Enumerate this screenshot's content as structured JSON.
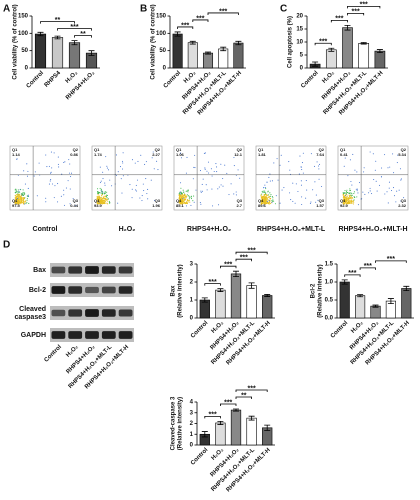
{
  "chart_data": [
    {
      "type": "bar",
      "panel": "A",
      "ylabel": [
        "Cell viability (% of control)"
      ],
      "categories": [
        "Control",
        "RHPS4",
        "H₂O₂",
        "RHPS4+H₂O₂"
      ],
      "values": [
        98,
        88,
        73,
        43
      ],
      "errors": [
        5,
        4,
        6,
        7
      ],
      "colors": [
        "#333333",
        "#c8c8c8",
        "#777777",
        "#555555"
      ],
      "ylim": [
        0,
        150
      ],
      "yticks": [
        0,
        50,
        100,
        150
      ],
      "significance": [
        {
          "label": "**",
          "between": [
            "H₂O₂",
            "RHPS4+H₂O₂"
          ]
        },
        {
          "label": "***",
          "between": [
            "RHPS4",
            "RHPS4+H₂O₂"
          ]
        },
        {
          "label": "**",
          "between": [
            "Control",
            "H₂O₂"
          ]
        }
      ]
    },
    {
      "type": "bar",
      "panel": "B",
      "ylabel": [
        "Cell viability (% of control)"
      ],
      "categories": [
        "Control",
        "H₂O₂",
        "RHPS4+H₂O₂",
        "RHPS4+H₂O₂+MLT-L",
        "RHPS4+H₂O₂+MLT-H"
      ],
      "values": [
        98,
        73,
        43,
        55,
        72
      ],
      "errors": [
        6,
        4,
        3,
        5,
        5
      ],
      "colors": [
        "#333333",
        "#dddddd",
        "#888888",
        "#ffffff",
        "#666666"
      ],
      "ylim": [
        0,
        150
      ],
      "yticks": [
        0,
        50,
        100,
        150
      ],
      "significance": [
        {
          "label": "***",
          "between": [
            "Control",
            "H₂O₂"
          ]
        },
        {
          "label": "***",
          "between": [
            "H₂O₂",
            "RHPS4+H₂O₂"
          ]
        },
        {
          "label": "***",
          "between": [
            "RHPS4+H₂O₂",
            "RHPS4+H₂O₂+MLT-H"
          ]
        }
      ]
    },
    {
      "type": "bar",
      "panel": "C",
      "ylabel": [
        "Cell apoptosis (%)"
      ],
      "categories": [
        "Control",
        "H₂O₂",
        "RHPS4+H₂O₂",
        "RHPS4+H₂O₂+MLT-L",
        "RHPS4+H₂O₂+MLT-H"
      ],
      "values": [
        1.5,
        7,
        15.5,
        9.5,
        6.5
      ],
      "errors": [
        0.8,
        0.6,
        0.9,
        0.3,
        0.6
      ],
      "colors": [
        "#333333",
        "#dddddd",
        "#888888",
        "#ffffff",
        "#666666"
      ],
      "ylim": [
        0,
        20
      ],
      "yticks": [
        0,
        5,
        10,
        15,
        20
      ],
      "significance": [
        {
          "label": "***",
          "between": [
            "Control",
            "H₂O₂"
          ]
        },
        {
          "label": "***",
          "between": [
            "H₂O₂",
            "RHPS4+H₂O₂"
          ]
        },
        {
          "label": "***",
          "between": [
            "RHPS4+H₂O₂",
            "RHPS4+H₂O₂+MLT-L"
          ]
        },
        {
          "label": "***",
          "between": [
            "RHPS4+H₂O₂",
            "RHPS4+H₂O₂+MLT-H"
          ]
        }
      ]
    },
    {
      "type": "bar",
      "ylabel": [
        "Bax",
        "(Relative intensity)"
      ],
      "categories": [
        "Control",
        "H₂O₂",
        "RHPS4+H₂O₂",
        "RHPS4+H₂O₂+MLT-L",
        "RHPS4+H₂O₂+MLT-H"
      ],
      "values": [
        1.0,
        1.55,
        2.45,
        1.8,
        1.25
      ],
      "errors": [
        0.12,
        0.08,
        0.15,
        0.15,
        0.06
      ],
      "colors": [
        "#333333",
        "#dddddd",
        "#888888",
        "#ffffff",
        "#666666"
      ],
      "ylim": [
        0,
        3
      ],
      "yticks": [
        0,
        1,
        2,
        3
      ],
      "significance": [
        {
          "label": "***",
          "between": [
            "Control",
            "H₂O₂"
          ]
        },
        {
          "label": "***",
          "between": [
            "H₂O₂",
            "RHPS4+H₂O₂"
          ]
        },
        {
          "label": "***",
          "between": [
            "RHPS4+H₂O₂",
            "RHPS4+H₂O₂+MLT-L"
          ]
        },
        {
          "label": "***",
          "between": [
            "RHPS4+H₂O₂",
            "RHPS4+H₂O₂+MLT-H"
          ]
        }
      ]
    },
    {
      "type": "bar",
      "ylabel": [
        "Bcl-2",
        "(Relative intensity)"
      ],
      "categories": [
        "Control",
        "H₂O₂",
        "RHPS4+H₂O₂",
        "RHPS4+H₂O₂+MLT-L",
        "RHPS4+H₂O₂+MLT-H"
      ],
      "values": [
        1.0,
        0.62,
        0.33,
        0.47,
        0.82
      ],
      "errors": [
        0.06,
        0.03,
        0.03,
        0.07,
        0.06
      ],
      "colors": [
        "#333333",
        "#dddddd",
        "#888888",
        "#ffffff",
        "#666666"
      ],
      "ylim": [
        0,
        1.5
      ],
      "yticks": [
        {
          "value": 0,
          "label": "0.0"
        },
        0.5,
        {
          "value": 1,
          "label": "1.0"
        },
        1.5
      ],
      "significance": [
        {
          "label": "***",
          "between": [
            "Control",
            "H₂O₂"
          ]
        },
        {
          "label": "***",
          "between": [
            "H₂O₂",
            "RHPS4+H₂O₂"
          ]
        },
        {
          "label": "***",
          "between": [
            "RHPS4+H₂O₂",
            "RHPS4+H₂O₂+MLT-H"
          ]
        }
      ]
    },
    {
      "type": "bar",
      "ylabel": [
        "Cleaved-caspase 3",
        "(Relative intensity)"
      ],
      "categories": [
        "Control",
        "H₂O₂",
        "RHPS4+H₂O₂",
        "RHPS4+H₂O₂+MLT-L",
        "RHPS4+H₂O₂+MLT-H"
      ],
      "values": [
        1.0,
        2.05,
        3.25,
        2.5,
        1.6
      ],
      "errors": [
        0.25,
        0.15,
        0.1,
        0.18,
        0.25
      ],
      "colors": [
        "#333333",
        "#dddddd",
        "#888888",
        "#ffffff",
        "#666666"
      ],
      "ylim": [
        0,
        4
      ],
      "yticks": [
        0,
        1,
        2,
        3,
        4
      ],
      "significance": [
        {
          "label": "***",
          "between": [
            "Control",
            "H₂O₂"
          ]
        },
        {
          "label": "***",
          "between": [
            "H₂O₂",
            "RHPS4+H₂O₂"
          ]
        },
        {
          "label": "**",
          "between": [
            "RHPS4+H₂O₂",
            "RHPS4+H₂O₂+MLT-L"
          ]
        },
        {
          "label": "***",
          "between": [
            "RHPS4+H₂O₂",
            "RHPS4+H₂O₂+MLT-H"
          ]
        }
      ]
    }
  ],
  "flow_cytometry": [
    {
      "label": "Control",
      "quadrants": [
        {
          "name": "Q1",
          "value": 1.14
        },
        {
          "name": "Q2",
          "value": 0.86
        },
        {
          "name": "Q3",
          "value": 0.44
        },
        {
          "name": "Q4",
          "value": 97.5
        }
      ]
    },
    {
      "label": "H₂O₂",
      "quadrants": [
        {
          "name": "Q1",
          "value": 1.74
        },
        {
          "name": "Q2",
          "value": 2.27
        },
        {
          "name": "Q3",
          "value": 1.96
        },
        {
          "name": "Q4",
          "value": 93.9
        }
      ]
    },
    {
      "label": "RHPS4+H₂O₂",
      "quadrants": [
        {
          "name": "Q1",
          "value": 1.06
        },
        {
          "name": "Q2",
          "value": 12.1
        },
        {
          "name": "Q3",
          "value": 2.7
        },
        {
          "name": "Q4",
          "value": 85.1
        }
      ]
    },
    {
      "label": "RHPS4+H₂O₂+MLT-L",
      "quadrants": [
        {
          "name": "Q1",
          "value": 1.81
        },
        {
          "name": "Q2",
          "value": 7.64
        },
        {
          "name": "Q3",
          "value": 1.57
        },
        {
          "name": "Q4",
          "value": 89.6
        }
      ]
    },
    {
      "label": "RHPS4+H₂O₂+MLT-H",
      "quadrants": [
        {
          "name": "Q1",
          "value": 0.41
        },
        {
          "name": "Q2",
          "value": 5.34
        },
        {
          "name": "Q3",
          "value": 2.32
        },
        {
          "name": "Q4",
          "value": 92.9
        }
      ]
    }
  ],
  "western_blot": {
    "panel": "D",
    "rows": [
      [
        "Bax"
      ],
      [
        "Bcl-2"
      ],
      [
        "Cleaved",
        "caspase3"
      ],
      [
        "GAPDH"
      ]
    ],
    "lanes": [
      "Control",
      "H₂O₂",
      "RHPS4+H₂O₂",
      "RHPS4+H₂O₂+MLT-L",
      "RHPS4+H₂O₂+MLT-H"
    ]
  }
}
